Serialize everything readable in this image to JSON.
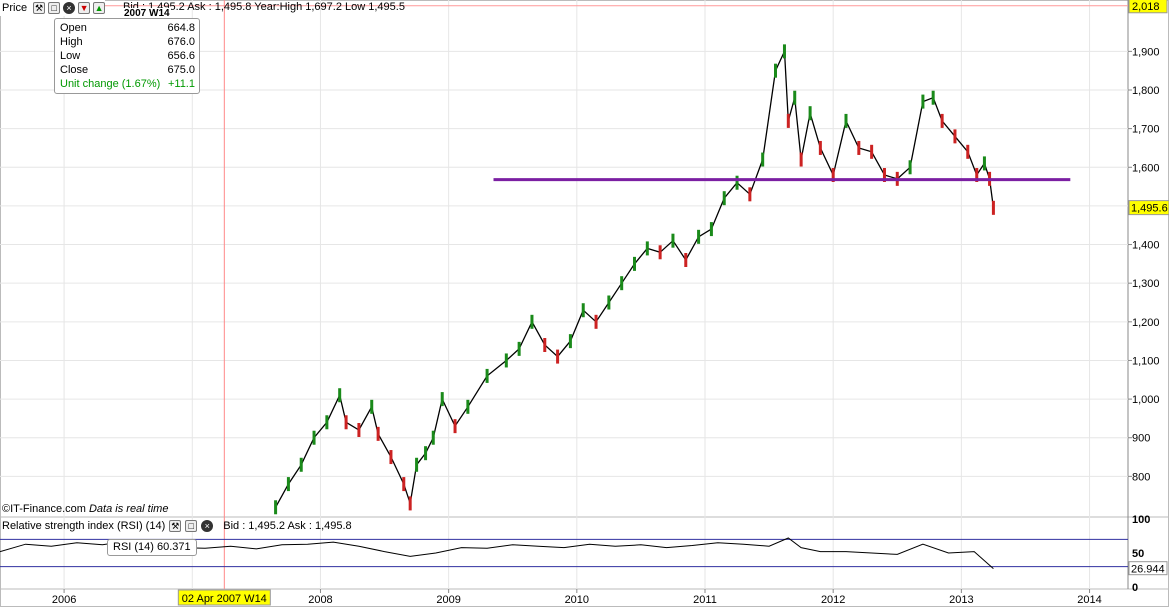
{
  "toolbar": {
    "title": "Price",
    "icons": [
      "wrench-icon",
      "window-icon",
      "close-icon",
      "arrow-down-icon",
      "arrow-up-icon"
    ]
  },
  "header": {
    "bid_ask": "Bid : 1,495.2 Ask : 1,495.8",
    "year_range": "Year:High 1,697.2 Low 1,495.5",
    "period_tag": "2007 W14"
  },
  "ohlc": {
    "rows": [
      {
        "label": "Open",
        "value": "664.8"
      },
      {
        "label": "High",
        "value": "676.0"
      },
      {
        "label": "Low",
        "value": "656.6"
      },
      {
        "label": "Close",
        "value": "675.0"
      },
      {
        "label": "Unit change (1.67%)",
        "value": "+11.1"
      }
    ]
  },
  "source": {
    "prefix": "©IT-Finance.com",
    "suffix": "Data is real time"
  },
  "rsi_panel": {
    "title": "Relative strength index (RSI) (14)",
    "bid_ask": "Bid : 1,495.2 Ask : 1,495.8",
    "legend": "RSI (14)  60.371"
  },
  "colors": {
    "up_candle": "#1a8a1a",
    "down_candle": "#cc2222",
    "line": "#000000",
    "support_line": "#7b1fa2",
    "cursor": "#ff8888",
    "rsi_band": "#3030a0",
    "last_price_bg": "#ffff00",
    "top_price_bg": "#ffff00"
  },
  "chart_data": [
    {
      "type": "line",
      "title": "Price",
      "x_tick_labels": [
        "2006",
        "2007",
        "2008",
        "2009",
        "2010",
        "2011",
        "2012",
        "2013",
        "2014"
      ],
      "y_tick_labels": [
        "800",
        "900",
        "1,000",
        "1,100",
        "1,200",
        "1,300",
        "1,400",
        "1,500",
        "1,600",
        "1,700",
        "1,800",
        "1,900"
      ],
      "y_ticks": [
        800,
        900,
        1000,
        1100,
        1200,
        1300,
        1400,
        1500,
        1600,
        1700,
        1800,
        1900
      ],
      "x_ticks": [
        2006,
        2007,
        2008,
        2009,
        2010,
        2011,
        2012,
        2013,
        2014
      ],
      "xlim": [
        2005.5,
        2014.3
      ],
      "ylim": [
        700,
        2020
      ],
      "grid": true,
      "last_price_label": "1,495.6",
      "last_price": 1495.6,
      "top_label": "2,018",
      "top_value": 2018,
      "support_level": 1568,
      "support_from": 2009.35,
      "support_to": 2013.85,
      "cursor_x": 2007.25,
      "cursor_label": "02 Apr 2007 W14",
      "x": [
        2007.65,
        2007.75,
        2007.85,
        2007.95,
        2008.05,
        2008.15,
        2008.2,
        2008.3,
        2008.4,
        2008.45,
        2008.55,
        2008.65,
        2008.7,
        2008.75,
        2008.82,
        2008.88,
        2008.95,
        2009.05,
        2009.15,
        2009.3,
        2009.45,
        2009.55,
        2009.65,
        2009.75,
        2009.85,
        2009.95,
        2010.05,
        2010.15,
        2010.25,
        2010.35,
        2010.45,
        2010.55,
        2010.65,
        2010.75,
        2010.85,
        2010.95,
        2011.05,
        2011.15,
        2011.25,
        2011.35,
        2011.45,
        2011.55,
        2011.62,
        2011.65,
        2011.7,
        2011.75,
        2011.82,
        2011.9,
        2012.0,
        2012.1,
        2012.2,
        2012.3,
        2012.4,
        2012.5,
        2012.6,
        2012.7,
        2012.78,
        2012.85,
        2012.95,
        2013.05,
        2013.12,
        2013.18,
        2013.22,
        2013.25
      ],
      "values": [
        720,
        780,
        830,
        900,
        940,
        1010,
        940,
        920,
        980,
        910,
        850,
        780,
        730,
        830,
        860,
        900,
        1000,
        930,
        980,
        1060,
        1100,
        1130,
        1200,
        1140,
        1110,
        1150,
        1230,
        1200,
        1250,
        1300,
        1350,
        1390,
        1380,
        1410,
        1360,
        1420,
        1440,
        1520,
        1560,
        1530,
        1620,
        1850,
        1900,
        1720,
        1780,
        1620,
        1740,
        1650,
        1580,
        1720,
        1650,
        1640,
        1580,
        1570,
        1600,
        1770,
        1780,
        1720,
        1680,
        1640,
        1580,
        1610,
        1570,
        1495
      ]
    },
    {
      "type": "line",
      "title": "Relative strength index (RSI) (14)",
      "y_tick_labels": [
        "100",
        "50",
        "0"
      ],
      "y_ticks": [
        100,
        50,
        0
      ],
      "ylim": [
        0,
        100
      ],
      "overbought": 70,
      "oversold": 30,
      "last_label": "26.944",
      "last_value": 26.944,
      "x": [
        2005.5,
        2005.7,
        2005.9,
        2006.1,
        2006.3,
        2006.5,
        2006.7,
        2006.9,
        2007.1,
        2007.3,
        2007.5,
        2007.7,
        2007.9,
        2008.1,
        2008.3,
        2008.5,
        2008.7,
        2008.9,
        2009.1,
        2009.3,
        2009.5,
        2009.7,
        2009.9,
        2010.1,
        2010.3,
        2010.5,
        2010.7,
        2010.9,
        2011.1,
        2011.3,
        2011.5,
        2011.65,
        2011.75,
        2011.9,
        2012.1,
        2012.3,
        2012.5,
        2012.7,
        2012.9,
        2013.1,
        2013.25
      ],
      "values": [
        52,
        63,
        60,
        65,
        62,
        68,
        62,
        58,
        57,
        60,
        56,
        62,
        63,
        66,
        60,
        52,
        45,
        50,
        58,
        57,
        62,
        60,
        58,
        63,
        60,
        62,
        58,
        61,
        65,
        63,
        60,
        72,
        58,
        52,
        52,
        50,
        48,
        63,
        50,
        52,
        27
      ]
    }
  ]
}
